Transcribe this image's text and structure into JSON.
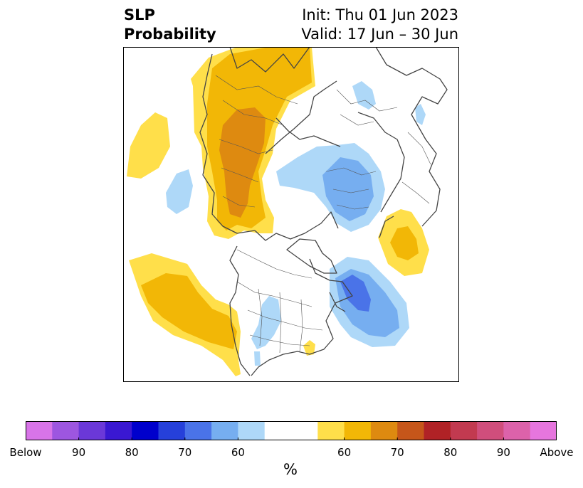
{
  "title": {
    "left_line1": "SLP",
    "left_line2": "Probability",
    "right_line1": "Init: Thu 01 Jun 2023",
    "right_line2": "Valid: 17 Jun – 30 Jun"
  },
  "colorbar": {
    "label": "%",
    "colors": [
      "#d874e8",
      "#9d56e0",
      "#6b38d8",
      "#3a18d2",
      "#0000cc",
      "#2640da",
      "#4a73e8",
      "#76aef0",
      "#aed8f8",
      "#ffffff",
      "#ffffff",
      "#ffdf4a",
      "#f2b706",
      "#de8a10",
      "#c6561a",
      "#b02226",
      "#c23a50",
      "#d04e7c",
      "#dc62aa",
      "#e676de"
    ],
    "ticks": [
      {
        "label": "Below",
        "index": 0
      },
      {
        "label": "90",
        "index": 2
      },
      {
        "label": "80",
        "index": 4
      },
      {
        "label": "70",
        "index": 6
      },
      {
        "label": "60",
        "index": 8
      },
      {
        "label": "60",
        "index": 12
      },
      {
        "label": "70",
        "index": 14
      },
      {
        "label": "80",
        "index": 16
      },
      {
        "label": "90",
        "index": 18
      },
      {
        "label": "Above",
        "index": 20
      }
    ]
  },
  "map": {
    "colors": {
      "above_50": "#ffdf4a",
      "above_60": "#f2b706",
      "above_70": "#de8a10",
      "below_50": "#aed8f8",
      "below_60": "#76aef0",
      "below_70": "#4a73e8",
      "coast": "#444444"
    }
  }
}
